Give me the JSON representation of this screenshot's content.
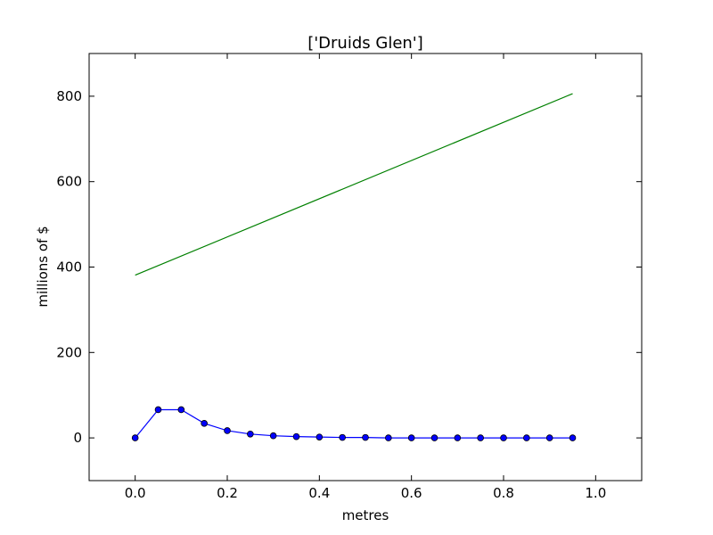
{
  "chart_data": {
    "type": "line",
    "title": "['Druids Glen']",
    "xlabel": "metres",
    "ylabel": "millions of $",
    "xlim": [
      -0.1,
      1.1
    ],
    "ylim": [
      -100,
      900
    ],
    "grid": false,
    "x_ticks": [
      0.0,
      0.2,
      0.4,
      0.6,
      0.8,
      1.0
    ],
    "x_tick_labels": [
      "0.0",
      "0.2",
      "0.4",
      "0.6",
      "0.8",
      "1.0"
    ],
    "y_ticks": [
      0,
      200,
      400,
      600,
      800
    ],
    "y_tick_labels": [
      "0",
      "200",
      "400",
      "600",
      "800"
    ],
    "series": [
      {
        "color": "#0000ff",
        "marker": "circle",
        "x": [
          0.0,
          0.05,
          0.1,
          0.15,
          0.2,
          0.25,
          0.3,
          0.35,
          0.4,
          0.45,
          0.5,
          0.55,
          0.6,
          0.65,
          0.7,
          0.75,
          0.8,
          0.85,
          0.9,
          0.95
        ],
        "y": [
          0,
          66,
          66,
          34,
          17,
          9,
          5,
          3,
          2,
          1,
          1,
          0,
          0,
          0,
          0,
          0,
          0,
          0,
          0,
          0
        ]
      },
      {
        "color": "#008000",
        "marker": "none",
        "x": [
          0.0,
          0.95
        ],
        "y": [
          381,
          806
        ]
      }
    ]
  }
}
